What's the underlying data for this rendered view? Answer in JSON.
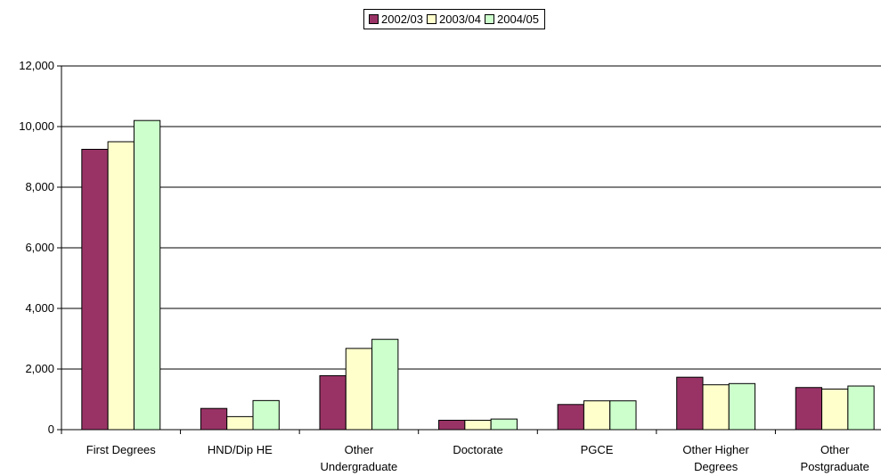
{
  "chart_data": {
    "type": "bar",
    "categories": [
      [
        "First Degrees"
      ],
      [
        "HND/Dip HE"
      ],
      [
        "Other",
        "Undergraduate"
      ],
      [
        "Doctorate"
      ],
      [
        "PGCE"
      ],
      [
        "Other Higher",
        "Degrees"
      ],
      [
        "Other",
        "Postgraduate"
      ]
    ],
    "series": [
      {
        "name": "2002/03",
        "color": "#993366",
        "values": [
          9250,
          700,
          1780,
          310,
          830,
          1730,
          1390
        ]
      },
      {
        "name": "2003/04",
        "color": "#FFFFCC",
        "values": [
          9500,
          430,
          2680,
          310,
          950,
          1480,
          1340
        ]
      },
      {
        "name": "2004/05",
        "color": "#CCFFCC",
        "values": [
          10200,
          960,
          2980,
          350,
          950,
          1520,
          1440
        ]
      }
    ],
    "yticks": [
      "0",
      "2,000",
      "4,000",
      "6,000",
      "8,000",
      "10,000",
      "12,000"
    ],
    "ylim": [
      0,
      12000
    ],
    "grid": true,
    "legend_position": "top-center",
    "title": "",
    "xlabel": "",
    "ylabel": ""
  }
}
